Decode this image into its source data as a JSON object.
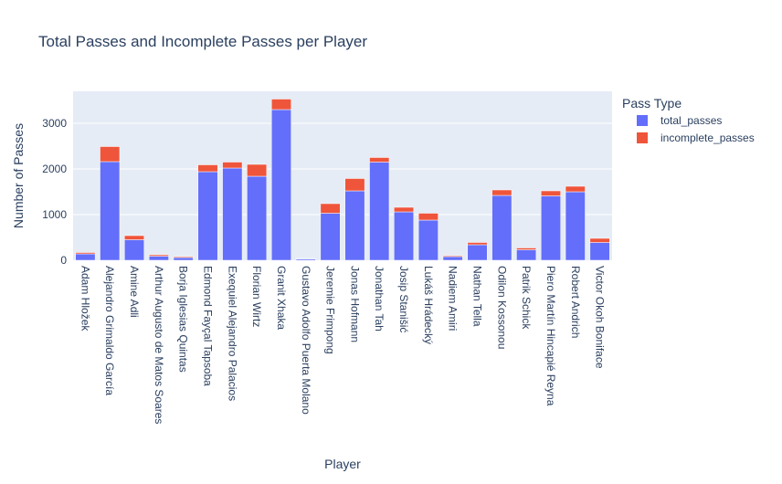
{
  "chart_data": {
    "type": "bar",
    "barmode": "stack",
    "title": "Total Passes and Incomplete Passes per Player",
    "xlabel": "Player",
    "ylabel": "Number of Passes",
    "ylim": [
      0,
      3700
    ],
    "yticks": [
      0,
      1000,
      2000,
      3000
    ],
    "ytick_labels": [
      "0",
      "1000",
      "2000",
      "3000"
    ],
    "grid": true,
    "legend_placement": "top-right",
    "legend_title": "Pass Type",
    "categories": [
      "Adam Hložek",
      "Alejandro Grimaldo García",
      "Amine Adli",
      "Arthur Augusto de Matos Soares",
      "Borja Iglesias Quintas",
      "Edmond Fayçal Tapsoba",
      "Exequiel Alejandro Palacios",
      "Florian Wirtz",
      "Granit Xhaka",
      "Gustavo Adolfo Puerta Molano",
      "Jeremie Frimpong",
      "Jonas Hofmann",
      "Jonathan Tah",
      "Josip Stanišić",
      "Lukáš Hrádecký",
      "Nadiem Amiri",
      "Nathan Tella",
      "Odilon Kossonou",
      "Patrik Schick",
      "Piero Martín Hincapié Reyna",
      "Robert Andrich",
      "Victor Okoh Boniface"
    ],
    "series": [
      {
        "name": "total_passes",
        "color": "#636efa",
        "values": [
          140,
          2160,
          450,
          90,
          60,
          1940,
          2020,
          1840,
          3300,
          30,
          1030,
          1520,
          2150,
          1060,
          880,
          80,
          340,
          1420,
          230,
          1410,
          1500,
          390
        ]
      },
      {
        "name": "incomplete_passes",
        "color": "#ef553b",
        "values": [
          30,
          330,
          90,
          30,
          20,
          150,
          130,
          260,
          230,
          10,
          210,
          270,
          100,
          100,
          150,
          20,
          50,
          120,
          40,
          110,
          120,
          90
        ]
      }
    ]
  }
}
